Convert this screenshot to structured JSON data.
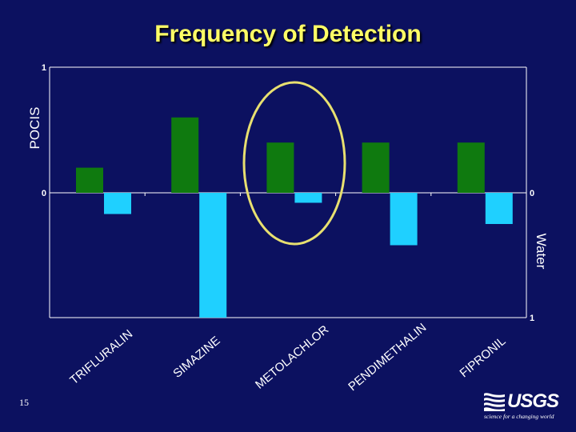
{
  "slide": {
    "title": "Frequency of Detection",
    "page_number": "15"
  },
  "logo": {
    "name": "USGS",
    "tagline": "science for a changing world"
  },
  "colors": {
    "background": "#0c1160",
    "title": "#ffff66",
    "pocis": "#0f7a0f",
    "water": "#1fd0ff",
    "highlight": "#e8e070",
    "axis": "#ffffff"
  },
  "chart_data": {
    "type": "bar",
    "title": "Frequency of Detection",
    "categories": [
      "TRIFLURALIN",
      "SIMAZINE",
      "METOLACHLOR",
      "PENDIMETHALIN",
      "FIPRONIL"
    ],
    "series": [
      {
        "name": "POCIS",
        "axis": "left",
        "direction": "up",
        "values": [
          0.2,
          0.6,
          0.4,
          0.4,
          0.4
        ]
      },
      {
        "name": "Water",
        "axis": "right",
        "direction": "down",
        "values": [
          0.17,
          1.0,
          0.08,
          0.42,
          0.25
        ]
      }
    ],
    "left_axis": {
      "label": "POCIS",
      "ticks": [
        "1",
        "0"
      ],
      "range": [
        0,
        1
      ]
    },
    "right_axis": {
      "label": "Water",
      "ticks": [
        "0",
        "1"
      ],
      "range": [
        0,
        1
      ]
    },
    "highlighted_category": "METOLACHLOR",
    "grid": false
  }
}
